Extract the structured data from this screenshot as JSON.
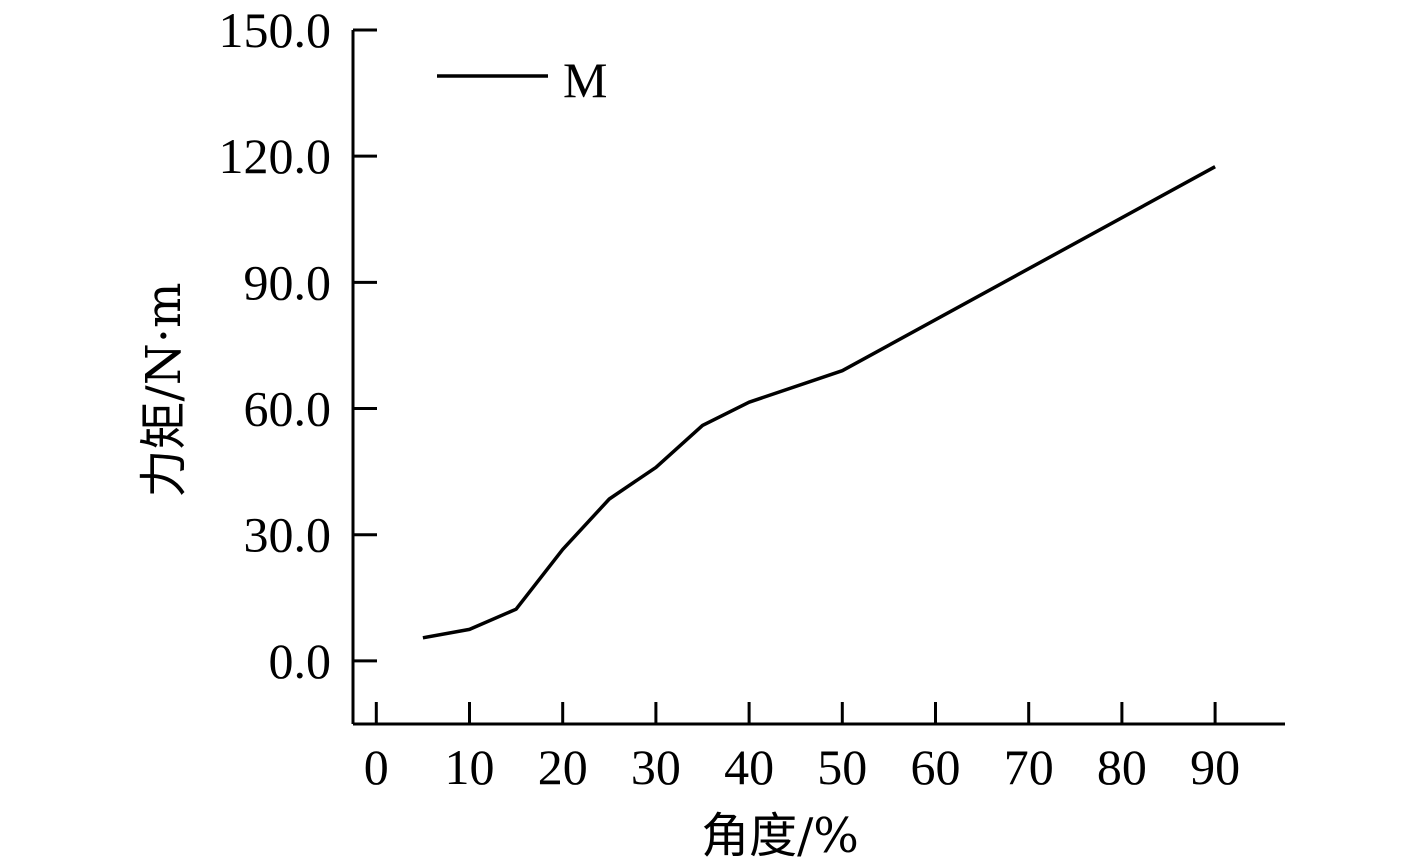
{
  "chart_data": {
    "type": "line",
    "title": "",
    "xlabel": "角度/%",
    "ylabel": "力矩/N·m",
    "xlim": [
      -2.5,
      97.5
    ],
    "ylim": [
      -15,
      150
    ],
    "xticks": [
      0,
      10,
      20,
      30,
      40,
      50,
      60,
      70,
      80,
      90
    ],
    "xtick_labels": [
      "0",
      "10",
      "20",
      "30",
      "40",
      "50",
      "60",
      "70",
      "80",
      "90"
    ],
    "yticks": [
      0,
      30,
      60,
      90,
      120,
      150
    ],
    "ytick_labels": [
      "0.0",
      "30.0",
      "60.0",
      "90.0",
      "120.0",
      "150.0"
    ],
    "grid": false,
    "legend_position": "top-left",
    "series": [
      {
        "name": "M",
        "color": "#000000",
        "x": [
          5,
          10,
          15,
          20,
          25,
          30,
          35,
          40,
          50,
          90
        ],
        "y": [
          5.5,
          7.5,
          12.3,
          26.5,
          38.5,
          46.0,
          56.0,
          61.5,
          69.0,
          117.5
        ]
      }
    ]
  }
}
